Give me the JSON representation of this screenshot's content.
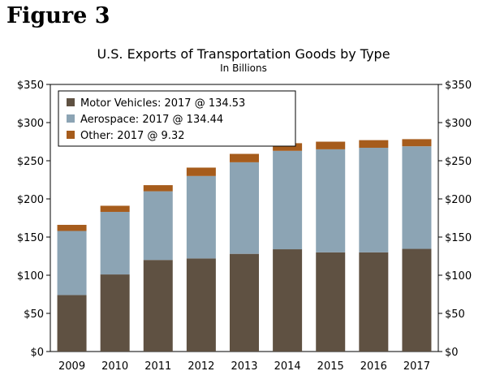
{
  "figure_label": "Figure 3",
  "chart_data": {
    "type": "bar",
    "stacked": true,
    "title": "U.S. Exports of Transportation Goods by Type",
    "subtitle": "In Billions",
    "categories": [
      "2009",
      "2010",
      "2011",
      "2012",
      "2013",
      "2014",
      "2015",
      "2016",
      "2017"
    ],
    "series": [
      {
        "name": "Motor Vehicles",
        "legend": "Motor Vehicles: 2017 @ 134.53",
        "color": "#5f5142",
        "values": [
          74,
          101,
          120,
          122,
          128,
          134,
          130,
          130,
          134.53
        ]
      },
      {
        "name": "Aerospace",
        "legend": "Aerospace: 2017 @ 134.44",
        "color": "#8ca4b4",
        "values": [
          84,
          82,
          90,
          108,
          120,
          129,
          135,
          137,
          134.44
        ]
      },
      {
        "name": "Other",
        "legend": "Other: 2017 @ 9.32",
        "color": "#a65c1c",
        "values": [
          8,
          8,
          8,
          11,
          11,
          10,
          10,
          10,
          9.32
        ]
      }
    ],
    "ylim": [
      0,
      350
    ],
    "yticks": [
      0,
      50,
      100,
      150,
      200,
      250,
      300,
      350
    ],
    "ytick_labels": [
      "$0",
      "$50",
      "$100",
      "$150",
      "$200",
      "$250",
      "$300",
      "$350"
    ],
    "legend_position": "top-left",
    "grid": false
  }
}
